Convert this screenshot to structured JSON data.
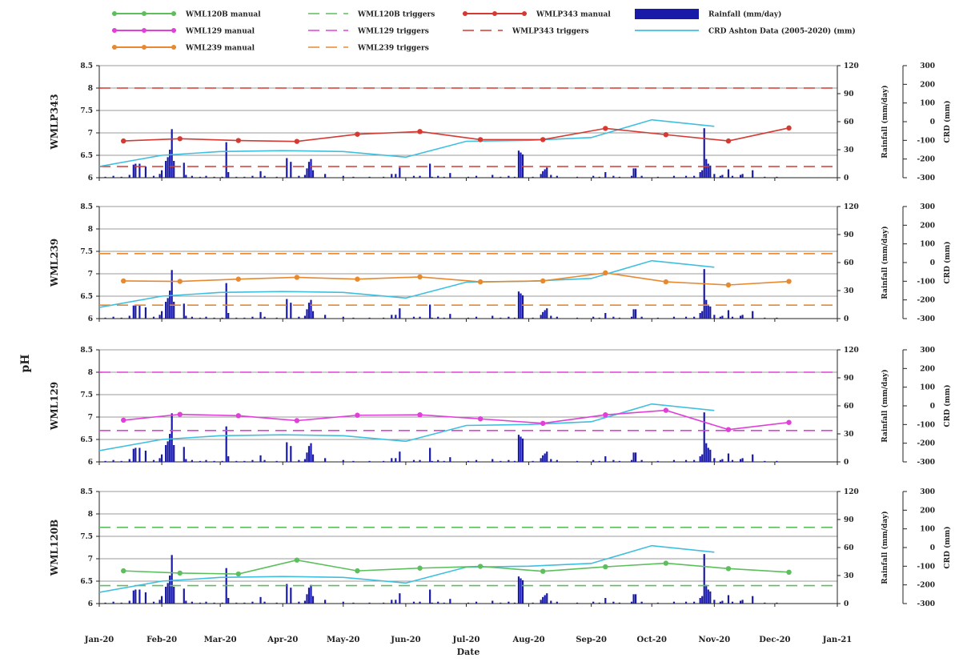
{
  "chart_data": {
    "type": "line",
    "xlabel": "Date",
    "ylabel": "pH",
    "right_axis_1_label": "Rainfall (mm/day)",
    "right_axis_2_label": "CRD (mm)",
    "x_ticks": [
      "Jan-20",
      "Feb-20",
      "Mar-20",
      "Apr-20",
      "May-20",
      "Jun-20",
      "Jul-20",
      "Aug-20",
      "Sep-20",
      "Oct-20",
      "Nov-20",
      "Dec-20",
      "Jan-21"
    ],
    "ph_ticks": [
      "6",
      "6.5",
      "7",
      "7.5",
      "8",
      "8.5"
    ],
    "ph_range": [
      6,
      8.5
    ],
    "crd_ticks": [
      "300",
      "200",
      "100",
      "0",
      "-100",
      "-200",
      "-300"
    ],
    "crd_range": [
      -300,
      300
    ],
    "crd_label": "CRD Ashton Data (2005-2020) (mm)",
    "crd_color": "#3fbfdf",
    "crd_dates": [
      "2020-01-01",
      "2020-02-01",
      "2020-03-01",
      "2020-04-01",
      "2020-05-01",
      "2020-06-01",
      "2020-07-01",
      "2020-08-01",
      "2020-09-01",
      "2020-10-01",
      "2020-11-01"
    ],
    "crd_values": [
      -240,
      -180,
      -160,
      -155,
      -160,
      -190,
      -105,
      -100,
      -85,
      10,
      -25
    ],
    "rainfall_label": "Rainfall (mm/day)",
    "rainfall_color": "#1a1aa8",
    "rainfall": [
      [
        "2020-01-04",
        1
      ],
      [
        "2020-01-08",
        2
      ],
      [
        "2020-01-12",
        1
      ],
      [
        "2020-01-16",
        3
      ],
      [
        "2020-01-18",
        14
      ],
      [
        "2020-01-19",
        15
      ],
      [
        "2020-01-21",
        15
      ],
      [
        "2020-01-24",
        12
      ],
      [
        "2020-01-28",
        2
      ],
      [
        "2020-01-31",
        4
      ],
      [
        "2020-02-01",
        8
      ],
      [
        "2020-02-03",
        18
      ],
      [
        "2020-02-04",
        22
      ],
      [
        "2020-02-05",
        30
      ],
      [
        "2020-02-06",
        52
      ],
      [
        "2020-02-07",
        18
      ],
      [
        "2020-02-12",
        16
      ],
      [
        "2020-02-13",
        3
      ],
      [
        "2020-02-16",
        2
      ],
      [
        "2020-02-20",
        1
      ],
      [
        "2020-02-23",
        2
      ],
      [
        "2020-02-27",
        1
      ],
      [
        "2020-03-02",
        1
      ],
      [
        "2020-03-04",
        38
      ],
      [
        "2020-03-05",
        6
      ],
      [
        "2020-03-09",
        1
      ],
      [
        "2020-03-13",
        1
      ],
      [
        "2020-03-17",
        2
      ],
      [
        "2020-03-21",
        7
      ],
      [
        "2020-03-23",
        2
      ],
      [
        "2020-03-29",
        1
      ],
      [
        "2020-04-03",
        21
      ],
      [
        "2020-04-05",
        17
      ],
      [
        "2020-04-09",
        2
      ],
      [
        "2020-04-12",
        3
      ],
      [
        "2020-04-13",
        10
      ],
      [
        "2020-04-14",
        17
      ],
      [
        "2020-04-15",
        20
      ],
      [
        "2020-04-16",
        8
      ],
      [
        "2020-04-22",
        4
      ],
      [
        "2020-05-01",
        2
      ],
      [
        "2020-05-06",
        1
      ],
      [
        "2020-05-14",
        1
      ],
      [
        "2020-05-21",
        1
      ],
      [
        "2020-05-25",
        4
      ],
      [
        "2020-05-27",
        4
      ],
      [
        "2020-05-29",
        11
      ],
      [
        "2020-06-05",
        2
      ],
      [
        "2020-06-08",
        2
      ],
      [
        "2020-06-13",
        15
      ],
      [
        "2020-06-14",
        1
      ],
      [
        "2020-06-17",
        2
      ],
      [
        "2020-06-20",
        1
      ],
      [
        "2020-06-23",
        5
      ],
      [
        "2020-07-02",
        1
      ],
      [
        "2020-07-06",
        2
      ],
      [
        "2020-07-14",
        3
      ],
      [
        "2020-07-18",
        1
      ],
      [
        "2020-07-22",
        2
      ],
      [
        "2020-07-25",
        1
      ],
      [
        "2020-07-27",
        29
      ],
      [
        "2020-07-28",
        27
      ],
      [
        "2020-07-29",
        25
      ],
      [
        "2020-08-03",
        1
      ],
      [
        "2020-08-07",
        4
      ],
      [
        "2020-08-08",
        7
      ],
      [
        "2020-08-09",
        9
      ],
      [
        "2020-08-10",
        11
      ],
      [
        "2020-08-12",
        3
      ],
      [
        "2020-08-15",
        2
      ],
      [
        "2020-08-25",
        1
      ],
      [
        "2020-09-02",
        2
      ],
      [
        "2020-09-05",
        1
      ],
      [
        "2020-09-08",
        6
      ],
      [
        "2020-09-12",
        2
      ],
      [
        "2020-09-15",
        1
      ],
      [
        "2020-09-21",
        2
      ],
      [
        "2020-09-22",
        10
      ],
      [
        "2020-09-23",
        10
      ],
      [
        "2020-09-26",
        2
      ],
      [
        "2020-10-04",
        1
      ],
      [
        "2020-10-12",
        2
      ],
      [
        "2020-10-18",
        2
      ],
      [
        "2020-10-22",
        2
      ],
      [
        "2020-10-25",
        6
      ],
      [
        "2020-10-26",
        8
      ],
      [
        "2020-10-27",
        53
      ],
      [
        "2020-10-28",
        20
      ],
      [
        "2020-10-29",
        15
      ],
      [
        "2020-10-30",
        13
      ],
      [
        "2020-11-01",
        4
      ],
      [
        "2020-11-04",
        2
      ],
      [
        "2020-11-05",
        3
      ],
      [
        "2020-11-08",
        9
      ],
      [
        "2020-11-10",
        2
      ],
      [
        "2020-11-14",
        3
      ],
      [
        "2020-11-15",
        4
      ],
      [
        "2020-11-20",
        8
      ],
      [
        "2020-11-26",
        1
      ],
      [
        "2020-12-02",
        1
      ]
    ],
    "rain_ticks": [
      "0",
      "30",
      "60",
      "90",
      "120"
    ],
    "rain_range": [
      0,
      120
    ],
    "panels": [
      {
        "well": "WMLP343",
        "manual_label": "WMLP343 manual",
        "trigger_label": "WMLP343 triggers",
        "color": "#d43a32",
        "marker_dates": [
          "2020-01-13",
          "2020-02-10",
          "2020-03-10",
          "2020-04-08",
          "2020-05-08",
          "2020-06-08",
          "2020-07-08",
          "2020-08-08",
          "2020-09-08",
          "2020-10-08",
          "2020-11-08",
          "2020-12-08"
        ],
        "ph_values": [
          6.82,
          6.87,
          6.83,
          6.81,
          6.97,
          7.03,
          6.85,
          6.85,
          7.1,
          6.96,
          6.82,
          7.11
        ],
        "triggers": [
          8.0,
          6.25
        ]
      },
      {
        "well": "WML239",
        "manual_label": "WML239 manual",
        "trigger_label": "WML239 triggers",
        "color": "#e8882f",
        "marker_dates": [
          "2020-01-13",
          "2020-02-10",
          "2020-03-10",
          "2020-04-08",
          "2020-05-08",
          "2020-06-08",
          "2020-07-08",
          "2020-08-08",
          "2020-09-08",
          "2020-10-08",
          "2020-11-08",
          "2020-12-08"
        ],
        "ph_values": [
          6.84,
          6.83,
          6.88,
          6.92,
          6.88,
          6.93,
          6.82,
          6.84,
          7.02,
          6.82,
          6.75,
          6.83
        ],
        "triggers": [
          7.45,
          6.3
        ]
      },
      {
        "well": "WML129",
        "manual_label": "WML129 manual",
        "trigger_label": "WML129 triggers",
        "color": "#e040d8",
        "marker_dates": [
          "2020-01-13",
          "2020-02-10",
          "2020-03-10",
          "2020-04-08",
          "2020-05-08",
          "2020-06-08",
          "2020-07-08",
          "2020-08-08",
          "2020-09-08",
          "2020-10-08",
          "2020-11-08",
          "2020-12-08"
        ],
        "ph_values": [
          6.93,
          7.06,
          7.03,
          6.92,
          7.04,
          7.05,
          6.96,
          6.86,
          7.05,
          7.15,
          6.72,
          6.88
        ],
        "triggers": [
          8.0,
          6.7
        ]
      },
      {
        "well": "WML120B",
        "manual_label": "WML120B manual",
        "trigger_label": "WML120B triggers",
        "color": "#5cbf5c",
        "marker_dates": [
          "2020-01-13",
          "2020-02-10",
          "2020-03-10",
          "2020-04-08",
          "2020-05-08",
          "2020-06-08",
          "2020-07-08",
          "2020-08-08",
          "2020-09-08",
          "2020-10-08",
          "2020-11-08",
          "2020-12-08"
        ],
        "ph_values": [
          6.73,
          6.68,
          6.66,
          6.97,
          6.73,
          6.79,
          6.83,
          6.72,
          6.82,
          6.9,
          6.78,
          6.7
        ],
        "triggers": [
          7.7,
          6.4
        ]
      }
    ]
  }
}
